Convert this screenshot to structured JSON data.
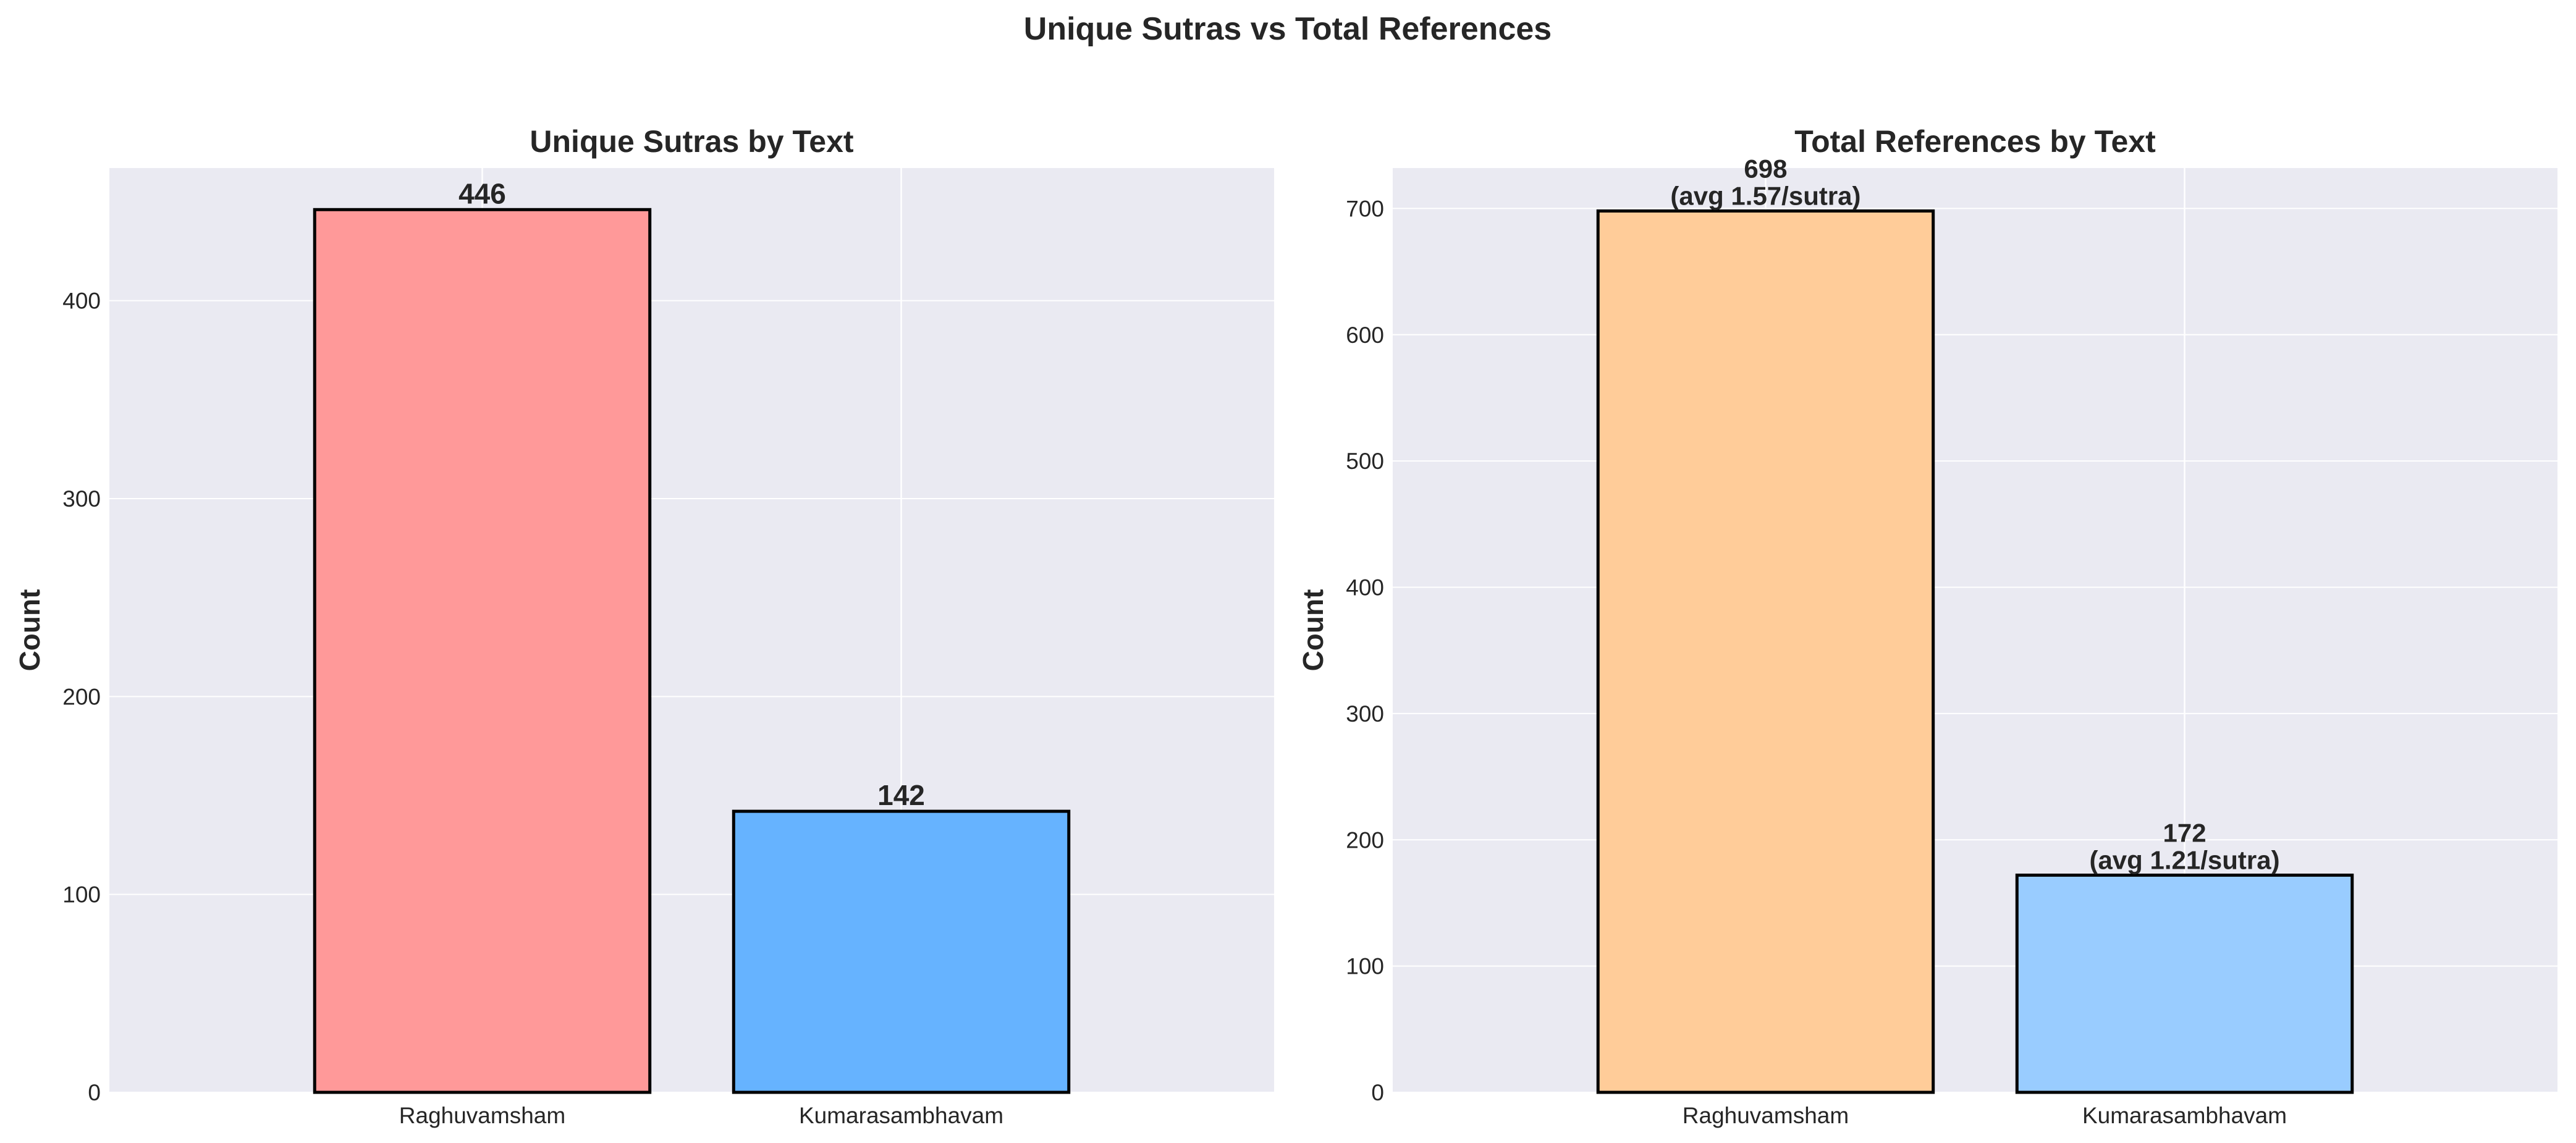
{
  "figure": {
    "title": "Unique Sutras vs Total References"
  },
  "chart_data": [
    {
      "type": "bar",
      "title": "Unique Sutras by Text",
      "xlabel": "",
      "ylabel": "Count",
      "categories": [
        "Raghuvamsham",
        "Kumarasambhavam"
      ],
      "values": [
        446,
        142
      ],
      "data_labels": [
        "446",
        "142"
      ],
      "colors": [
        "#ff9999",
        "#66b3ff"
      ],
      "ylim": [
        0,
        467
      ],
      "yticks": [
        0,
        100,
        200,
        300,
        400
      ],
      "grid": true
    },
    {
      "type": "bar",
      "title": "Total References by Text",
      "xlabel": "",
      "ylabel": "Count",
      "categories": [
        "Raghuvamsham",
        "Kumarasambhavam"
      ],
      "values": [
        698,
        172
      ],
      "data_labels": [
        [
          "698",
          "(avg 1.57/sutra)"
        ],
        [
          "172",
          "(avg 1.21/sutra)"
        ]
      ],
      "colors": [
        "#ffcc99",
        "#99ccff"
      ],
      "ylim": [
        0,
        732
      ],
      "yticks": [
        0,
        100,
        200,
        300,
        400,
        500,
        600,
        700
      ],
      "grid": true
    }
  ]
}
